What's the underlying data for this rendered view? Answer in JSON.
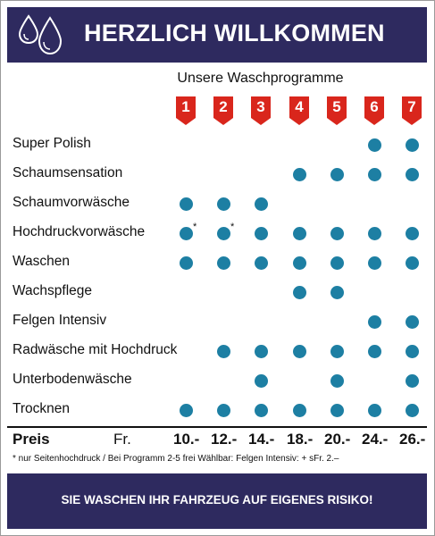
{
  "header": {
    "title": "HERZLICH WILLKOMMEN"
  },
  "subtitle": "Unsere Waschprogramme",
  "programs": [
    "1",
    "2",
    "3",
    "4",
    "5",
    "6",
    "7"
  ],
  "rows": [
    {
      "label": "Super Polish",
      "marks": [
        0,
        0,
        0,
        0,
        0,
        1,
        1
      ]
    },
    {
      "label": "Schaumsensation",
      "marks": [
        0,
        0,
        0,
        1,
        1,
        1,
        1
      ]
    },
    {
      "label": "Schaumvorwäsche",
      "marks": [
        1,
        1,
        1,
        0,
        0,
        0,
        0
      ]
    },
    {
      "label": "Hochdruckvorwäsche",
      "marks": [
        2,
        2,
        1,
        1,
        1,
        1,
        1
      ]
    },
    {
      "label": "Waschen",
      "marks": [
        1,
        1,
        1,
        1,
        1,
        1,
        1
      ]
    },
    {
      "label": "Wachspflege",
      "marks": [
        0,
        0,
        0,
        1,
        1,
        0,
        0
      ]
    },
    {
      "label": "Felgen Intensiv",
      "marks": [
        0,
        0,
        0,
        0,
        0,
        1,
        1
      ]
    },
    {
      "label": "Radwäsche mit Hochdruck",
      "marks": [
        0,
        1,
        1,
        1,
        1,
        1,
        1
      ]
    },
    {
      "label": "Unterbodenwäsche",
      "marks": [
        0,
        0,
        1,
        0,
        1,
        0,
        1
      ]
    },
    {
      "label": "Trocknen",
      "marks": [
        1,
        1,
        1,
        1,
        1,
        1,
        1
      ]
    }
  ],
  "star_symbol": "*",
  "price_row": {
    "label": "Preis",
    "currency": "Fr.",
    "prices": [
      "10.-",
      "12.-",
      "14.-",
      "18.-",
      "20.-",
      "24.-",
      "26.-"
    ]
  },
  "footnote": "* nur Seitenhochdruck / Bei Programm 2-5 frei Wählbar: Felgen Intensiv: + sFr. 2.–",
  "footer": {
    "text": "SIE WASCHEN IHR FAHRZEUG AUF EIGENES RISIKO!"
  },
  "colors": {
    "navy": "#2e2a5f",
    "badge_red": "#d9261c",
    "dot_blue": "#1d7fa3"
  }
}
